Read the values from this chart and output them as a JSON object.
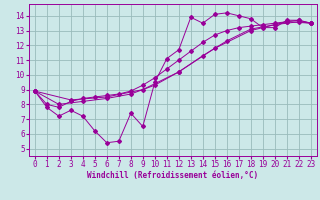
{
  "bg_color": "#cce8e8",
  "grid_color": "#99bbbb",
  "line_color": "#990099",
  "xlim": [
    -0.5,
    23.5
  ],
  "ylim": [
    4.5,
    14.8
  ],
  "xticks": [
    0,
    1,
    2,
    3,
    4,
    5,
    6,
    7,
    8,
    9,
    10,
    11,
    12,
    13,
    14,
    15,
    16,
    17,
    18,
    19,
    20,
    21,
    22,
    23
  ],
  "yticks": [
    5,
    6,
    7,
    8,
    9,
    10,
    11,
    12,
    13,
    14
  ],
  "xlabel": "Windchill (Refroidissement éolien,°C)",
  "series1": [
    [
      0,
      8.9
    ],
    [
      1,
      7.8
    ],
    [
      2,
      7.2
    ],
    [
      3,
      7.6
    ],
    [
      4,
      7.2
    ],
    [
      5,
      6.2
    ],
    [
      6,
      5.4
    ],
    [
      7,
      5.5
    ],
    [
      8,
      7.4
    ],
    [
      9,
      6.5
    ],
    [
      10,
      9.5
    ],
    [
      11,
      11.1
    ],
    [
      12,
      11.7
    ],
    [
      13,
      13.9
    ],
    [
      14,
      13.5
    ],
    [
      15,
      14.1
    ],
    [
      16,
      14.2
    ],
    [
      17,
      14.0
    ],
    [
      18,
      13.8
    ],
    [
      19,
      13.2
    ],
    [
      20,
      13.2
    ],
    [
      21,
      13.7
    ],
    [
      22,
      13.7
    ],
    [
      23,
      13.5
    ]
  ],
  "series2": [
    [
      0,
      8.9
    ],
    [
      1,
      8.0
    ],
    [
      2,
      7.8
    ],
    [
      3,
      8.2
    ],
    [
      4,
      8.4
    ],
    [
      5,
      8.5
    ],
    [
      6,
      8.6
    ],
    [
      7,
      8.7
    ],
    [
      8,
      8.9
    ],
    [
      9,
      9.3
    ],
    [
      10,
      9.8
    ],
    [
      11,
      10.4
    ],
    [
      12,
      11.0
    ],
    [
      13,
      11.6
    ],
    [
      14,
      12.2
    ],
    [
      15,
      12.7
    ],
    [
      16,
      13.0
    ],
    [
      17,
      13.2
    ],
    [
      18,
      13.3
    ],
    [
      19,
      13.4
    ],
    [
      20,
      13.5
    ],
    [
      21,
      13.6
    ],
    [
      22,
      13.7
    ],
    [
      23,
      13.5
    ]
  ],
  "series3": [
    [
      0,
      8.9
    ],
    [
      2,
      8.0
    ],
    [
      4,
      8.2
    ],
    [
      6,
      8.4
    ],
    [
      8,
      8.7
    ],
    [
      10,
      9.3
    ],
    [
      12,
      10.2
    ],
    [
      14,
      11.3
    ],
    [
      16,
      12.3
    ],
    [
      18,
      13.1
    ],
    [
      20,
      13.4
    ],
    [
      22,
      13.6
    ],
    [
      23,
      13.5
    ]
  ],
  "series4": [
    [
      0,
      8.9
    ],
    [
      3,
      8.3
    ],
    [
      6,
      8.5
    ],
    [
      9,
      9.0
    ],
    [
      12,
      10.2
    ],
    [
      15,
      11.8
    ],
    [
      18,
      13.0
    ],
    [
      21,
      13.6
    ],
    [
      23,
      13.5
    ]
  ]
}
